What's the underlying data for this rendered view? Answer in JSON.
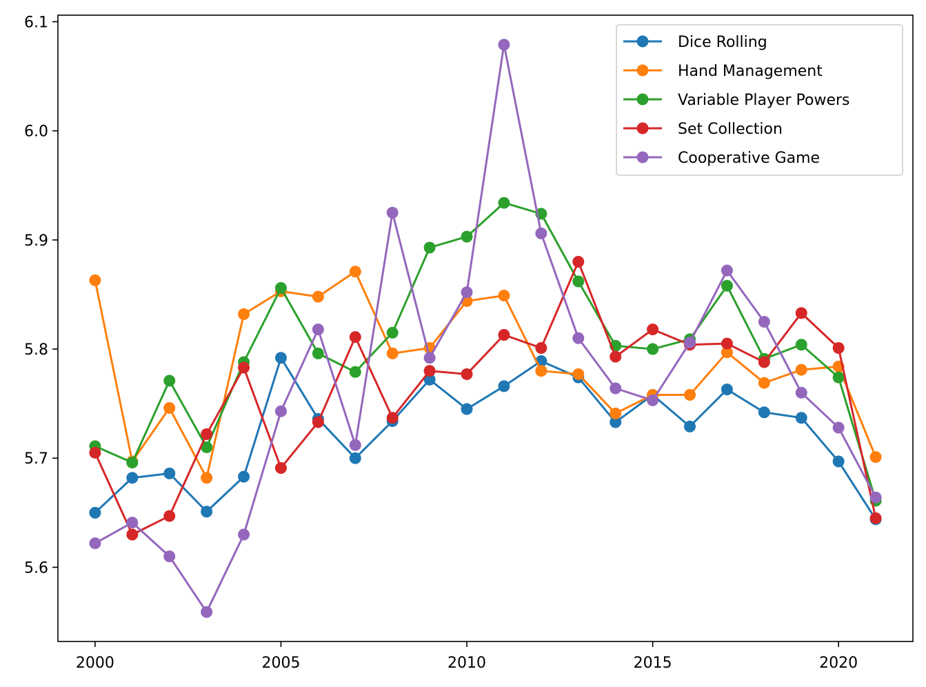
{
  "chart_data": {
    "type": "line",
    "title": "",
    "xlabel": "",
    "ylabel": "",
    "x": [
      2000,
      2001,
      2002,
      2003,
      2004,
      2005,
      2006,
      2007,
      2008,
      2009,
      2010,
      2011,
      2012,
      2013,
      2014,
      2015,
      2016,
      2017,
      2018,
      2019,
      2020,
      2021
    ],
    "xlim": [
      1999,
      2022
    ],
    "ylim": [
      5.532,
      6.106
    ],
    "xticks": [
      2000,
      2005,
      2010,
      2015,
      2020
    ],
    "xtick_labels": [
      "2000",
      "2005",
      "2010",
      "2015",
      "2020"
    ],
    "yticks": [
      5.6,
      5.7,
      5.8,
      5.9,
      6.0,
      6.1
    ],
    "ytick_labels": [
      "5.6",
      "5.7",
      "5.8",
      "5.9",
      "6.0",
      "6.1"
    ],
    "grid": false,
    "legend_position": "top-right",
    "series": [
      {
        "name": "Dice Rolling",
        "color": "#1f77b4",
        "values": [
          5.65,
          5.682,
          5.686,
          5.651,
          5.683,
          5.792,
          5.736,
          5.7,
          5.734,
          5.772,
          5.745,
          5.766,
          5.789,
          5.774,
          5.733,
          5.758,
          5.729,
          5.763,
          5.742,
          5.737,
          5.697,
          5.644
        ]
      },
      {
        "name": "Hand Management",
        "color": "#ff7f0e",
        "values": [
          5.863,
          5.697,
          5.746,
          5.682,
          5.832,
          5.853,
          5.848,
          5.871,
          5.796,
          5.801,
          5.844,
          5.849,
          5.78,
          5.777,
          5.741,
          5.758,
          5.758,
          5.797,
          5.769,
          5.781,
          5.784,
          5.701
        ]
      },
      {
        "name": "Variable Player Powers",
        "color": "#2ca02c",
        "values": [
          5.711,
          5.696,
          5.771,
          5.71,
          5.788,
          5.856,
          5.796,
          5.779,
          5.815,
          5.893,
          5.903,
          5.934,
          5.924,
          5.862,
          5.803,
          5.8,
          5.809,
          5.858,
          5.791,
          5.804,
          5.774,
          5.661
        ]
      },
      {
        "name": "Set Collection",
        "color": "#d62728",
        "values": [
          5.705,
          5.63,
          5.647,
          5.722,
          5.783,
          5.691,
          5.733,
          5.811,
          5.737,
          5.78,
          5.777,
          5.813,
          5.801,
          5.88,
          5.793,
          5.818,
          5.804,
          5.805,
          5.788,
          5.833,
          5.801,
          5.645
        ]
      },
      {
        "name": "Cooperative Game",
        "color": "#9467bd",
        "values": [
          5.622,
          5.641,
          5.61,
          5.559,
          5.63,
          5.743,
          5.818,
          5.712,
          5.925,
          5.792,
          5.852,
          6.079,
          5.906,
          5.81,
          5.764,
          5.753,
          5.806,
          5.872,
          5.825,
          5.76,
          5.728,
          5.664
        ]
      }
    ]
  }
}
